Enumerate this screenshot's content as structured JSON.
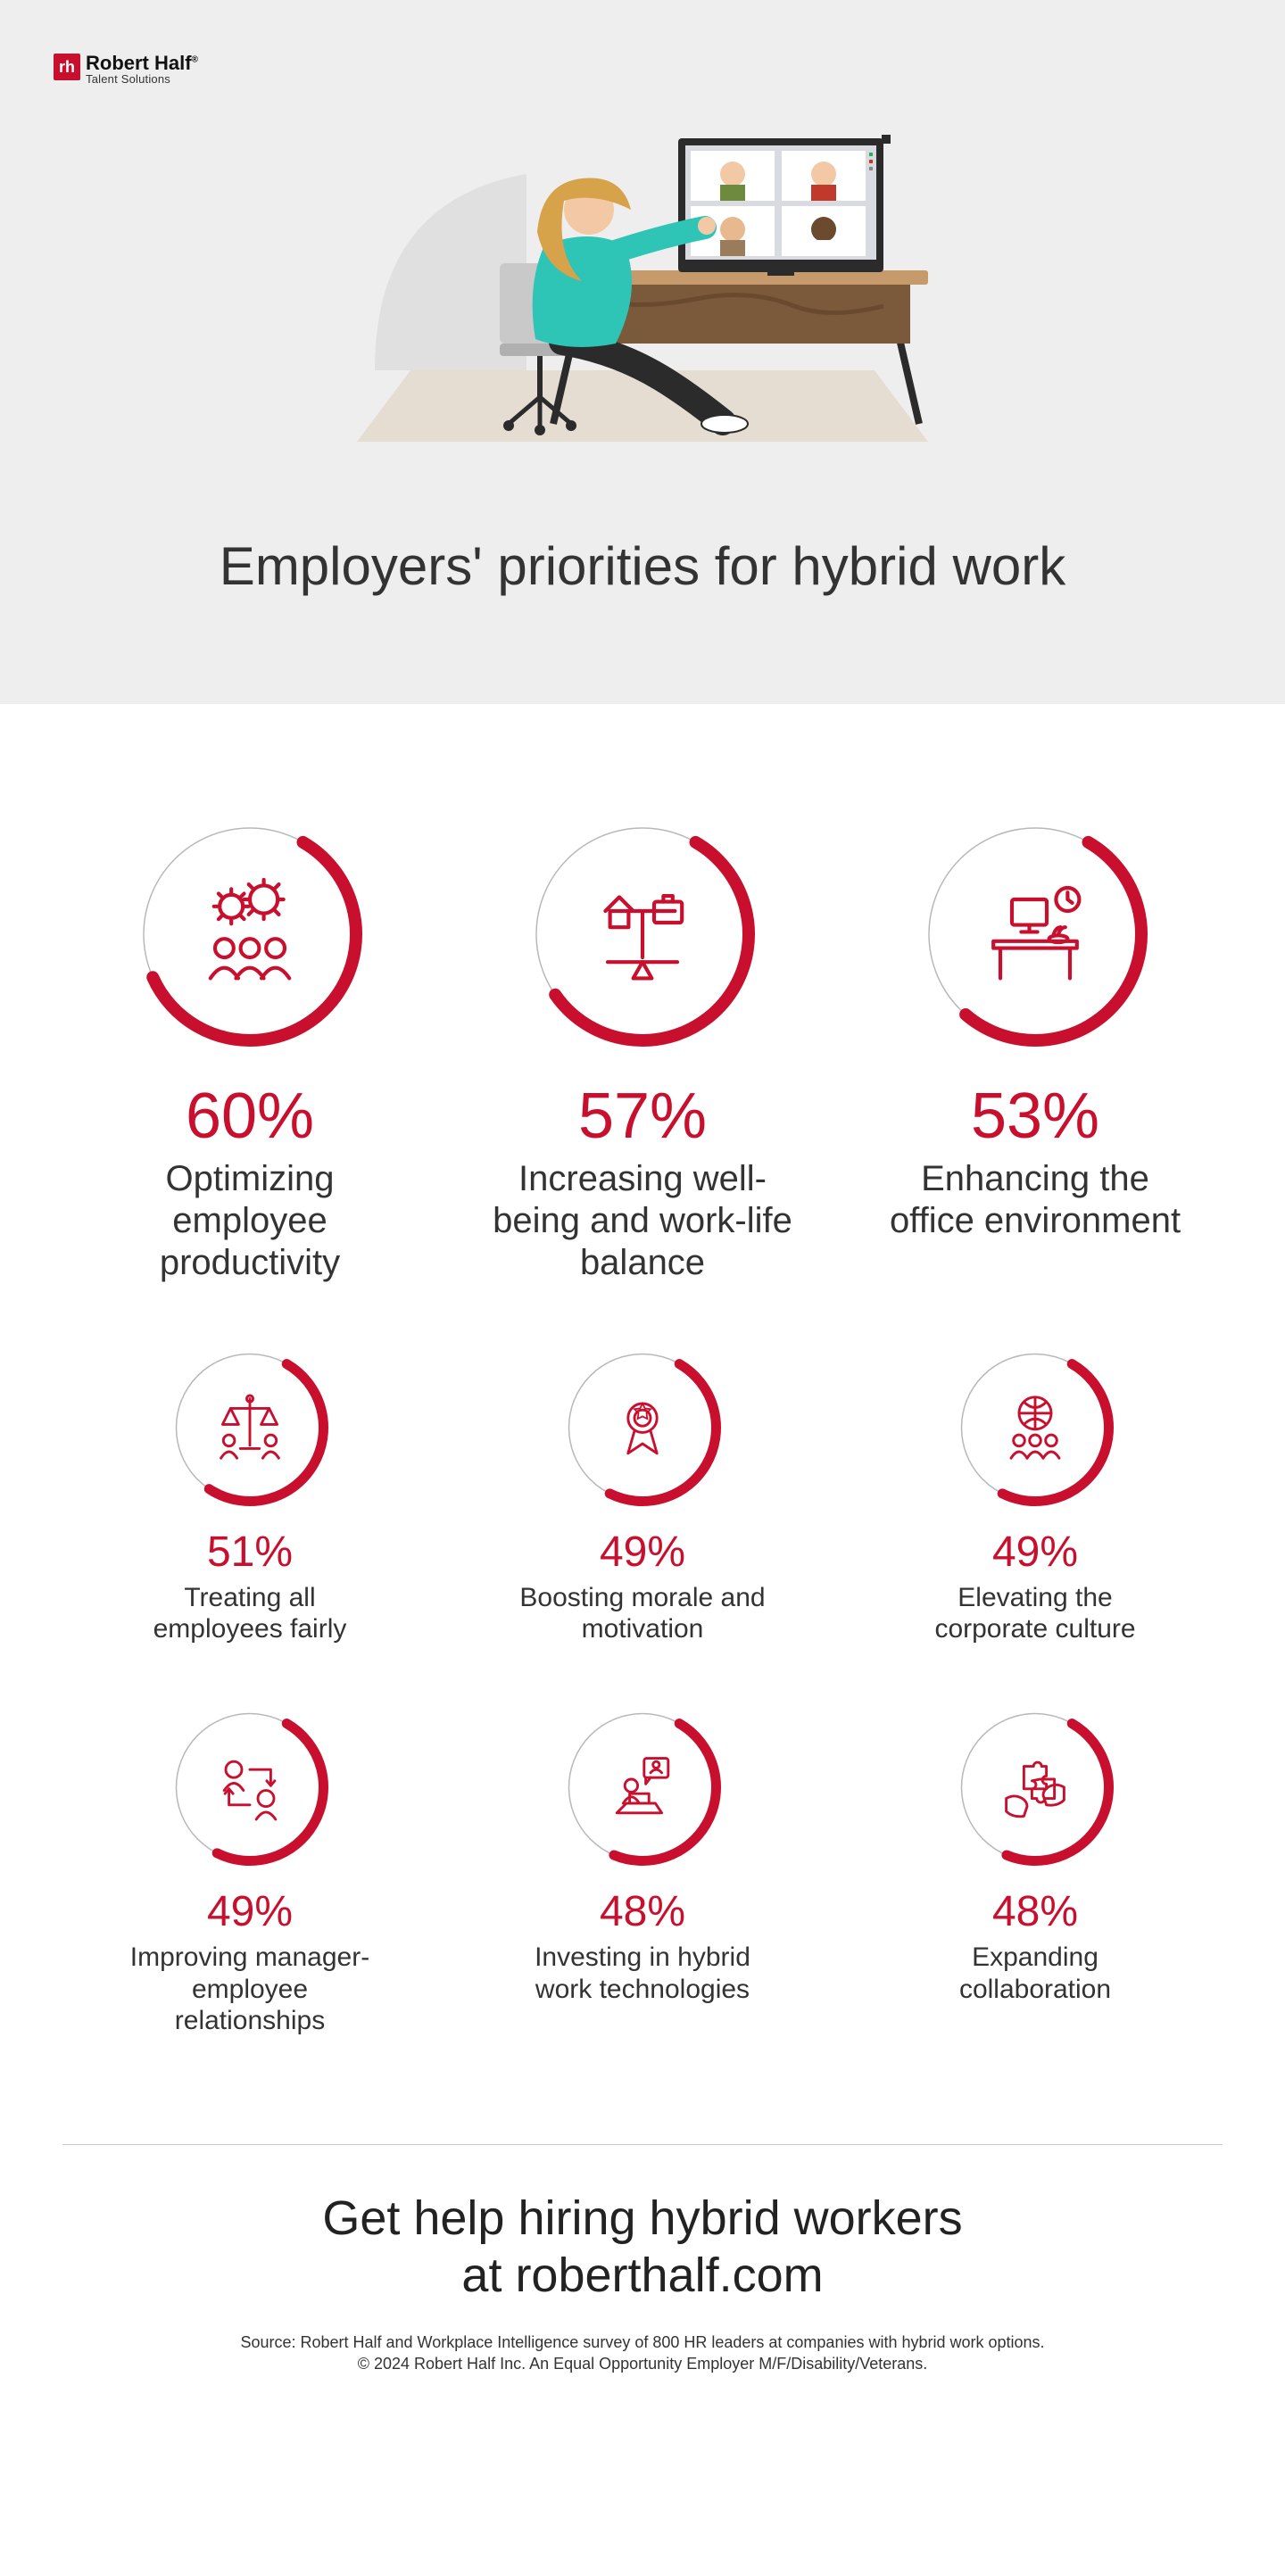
{
  "colors": {
    "accent": "#c8102e",
    "ring_track": "#b8b8b8",
    "hero_bg": "#eeeeee",
    "page_bg": "#ffffff",
    "text": "#333333",
    "divider": "#cccccc"
  },
  "logo": {
    "mark": "rh",
    "name": "Robert Half",
    "sub": "Talent Solutions"
  },
  "title": "Employers' priorities for hybrid work",
  "ring_sizes": {
    "large": 256,
    "small": 180
  },
  "ring_stroke": {
    "large": 14,
    "small": 11
  },
  "stats": [
    {
      "pct": 60,
      "pct_text": "60%",
      "label": "Optimizing employee productivity",
      "icon": "people-gears",
      "size": "large"
    },
    {
      "pct": 57,
      "pct_text": "57%",
      "label": "Increasing well-being and work-life balance",
      "icon": "balance-home-briefcase",
      "size": "large"
    },
    {
      "pct": 53,
      "pct_text": "53%",
      "label": "Enhancing the office environment",
      "icon": "desk-clock",
      "size": "large"
    },
    {
      "pct": 51,
      "pct_text": "51%",
      "label": "Treating all employees fairly",
      "icon": "scales-people",
      "size": "small"
    },
    {
      "pct": 49,
      "pct_text": "49%",
      "label": "Boosting morale and motivation",
      "icon": "award-ribbon",
      "size": "small"
    },
    {
      "pct": 49,
      "pct_text": "49%",
      "label": "Elevating the corporate culture",
      "icon": "globe-people",
      "size": "small"
    },
    {
      "pct": 49,
      "pct_text": "49%",
      "label": "Improving manager-employee relationships",
      "icon": "people-sync",
      "size": "small"
    },
    {
      "pct": 48,
      "pct_text": "48%",
      "label": "Investing in hybrid work technologies",
      "icon": "laptop-speech",
      "size": "small"
    },
    {
      "pct": 48,
      "pct_text": "48%",
      "label": "Expanding collaboration",
      "icon": "puzzle-hands",
      "size": "small"
    }
  ],
  "cta_line1": "Get help hiring hybrid workers",
  "cta_line2": "at roberthalf.com",
  "footnote_line1": "Source: Robert Half and Workplace Intelligence survey of 800 HR leaders at companies with hybrid work options.",
  "footnote_line2": "© 2024 Robert Half Inc. An Equal Opportunity Employer M/F/Disability/Veterans."
}
